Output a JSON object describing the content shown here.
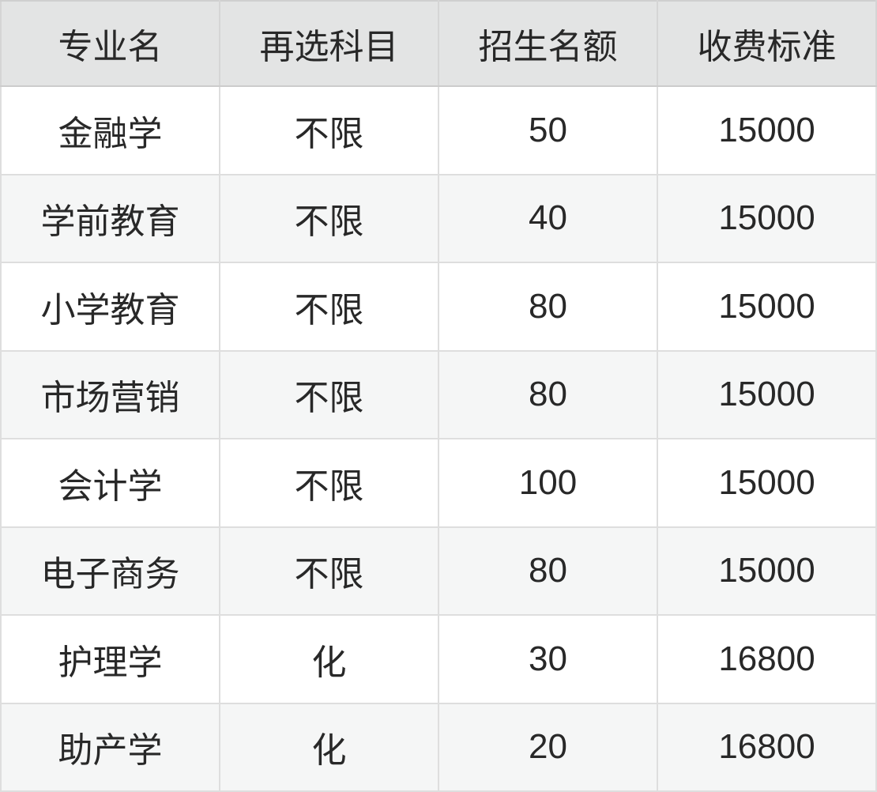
{
  "chart_data": {
    "type": "table",
    "title": "",
    "columns": [
      "专业名",
      "再选科目",
      "招生名额",
      "收费标准"
    ],
    "rows": [
      [
        "金融学",
        "不限",
        50,
        15000
      ],
      [
        "学前教育",
        "不限",
        40,
        15000
      ],
      [
        "小学教育",
        "不限",
        80,
        15000
      ],
      [
        "市场营销",
        "不限",
        80,
        15000
      ],
      [
        "会计学",
        "不限",
        100,
        15000
      ],
      [
        "电子商务",
        "不限",
        80,
        15000
      ],
      [
        "护理学",
        "化",
        30,
        16800
      ],
      [
        "助产学",
        "化",
        20,
        16800
      ]
    ],
    "layout_hints": {
      "header_row": true,
      "zebra_striping": true,
      "grid": true,
      "cell_alignment": "center"
    }
  },
  "colors": {
    "header_bg": "#e3e4e4",
    "row_bg": "#ffffff",
    "row_alt_bg": "#f5f6f6",
    "grid_border": "#dedede",
    "outer_border": "#cfcfcf",
    "text": "#282828"
  }
}
